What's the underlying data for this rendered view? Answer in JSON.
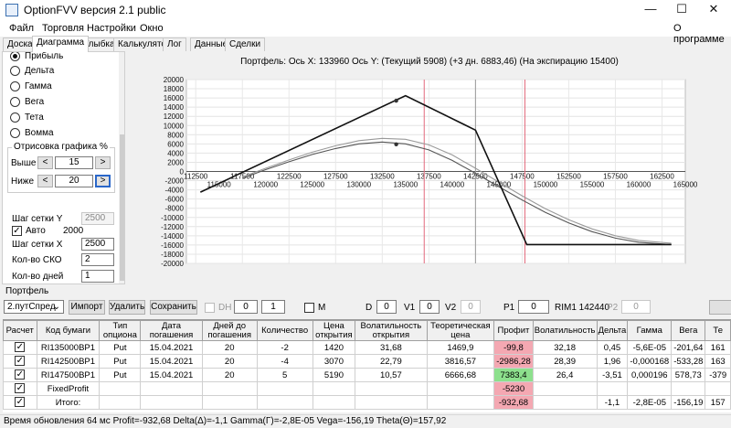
{
  "window": {
    "title": "OptionFVV версия 2.1 public",
    "minimize": "—",
    "maximize": "☐",
    "close": "✕"
  },
  "menu": {
    "items": [
      "Файл",
      "Торговля",
      "Настройки",
      "Окно"
    ],
    "right": "О программе"
  },
  "tabs": [
    "Доска",
    "Диаграмма",
    "Улыбка",
    "Калькулятор",
    "Лог",
    "Данные",
    "Сделки"
  ],
  "left_panel": {
    "radios": [
      {
        "label": "Прибыль",
        "checked": true
      },
      {
        "label": "Дельта",
        "checked": false
      },
      {
        "label": "Гамма",
        "checked": false
      },
      {
        "label": "Вега",
        "checked": false
      },
      {
        "label": "Тета",
        "checked": false
      },
      {
        "label": "Вомма",
        "checked": false
      }
    ],
    "group_title": "Отрисовка графика %",
    "above_label": "Выше",
    "above_value": "15",
    "below_label": "Ниже",
    "below_value": "20",
    "spin_left": "<",
    "spin_right": ">",
    "grid_y_label": "Шаг сетки Y",
    "grid_y_value": "2500",
    "auto_label": "Авто",
    "auto_checked": true,
    "auto_value": "2000",
    "grid_x_label": "Шаг сетки X",
    "grid_x_value": "2500",
    "sko_label": "Кол-во СКО",
    "sko_value": "2",
    "days_label": "Кол-во дней",
    "days_value": "1"
  },
  "chart": {
    "title": "Портфель: Ось X: 133960 Ось Y:  (Текущий 5908)  (+3 дн. 6883,46)  (На экспирацию 15400)"
  },
  "chart_data": {
    "type": "line",
    "title": "Портфель: Ось X: 133960 Ось Y:  (Текущий 5908)  (+3 дн. 6883,46)  (На экспирацию 15400)",
    "xlim": [
      111500,
      165000
    ],
    "ylim": [
      -20000,
      20000
    ],
    "grid": true,
    "y_ticks": [
      20000,
      18000,
      16000,
      14000,
      12000,
      10000,
      8000,
      6000,
      4000,
      2000,
      0,
      -2000,
      -4000,
      -6000,
      -8000,
      -10000,
      -12000,
      -14000,
      -16000,
      -18000,
      -20000
    ],
    "x_ticks_upper": [
      112500,
      117500,
      122500,
      127500,
      132500,
      137500,
      142500,
      147500,
      152500,
      157500,
      162500
    ],
    "x_ticks_lower": [
      115000,
      120000,
      125000,
      130000,
      135000,
      140000,
      145000,
      150000,
      155000,
      160000,
      165000
    ],
    "vlines": [
      {
        "x": 137000,
        "color": "#e36a7d"
      },
      {
        "x": 142500,
        "color": "#9a9a9a"
      },
      {
        "x": 147800,
        "color": "#e36a7d"
      }
    ],
    "series": [
      {
        "color": "#111111",
        "width": 1.6,
        "x": [
          113000,
          135000,
          142500,
          148000,
          163500
        ],
        "y": [
          -4500,
          16500,
          9000,
          -15900,
          -15900
        ]
      },
      {
        "color": "#9a9a9a",
        "width": 1.1,
        "x": [
          117500,
          120000,
          122500,
          125000,
          127500,
          130000,
          132500,
          135000,
          137500,
          140000,
          142500,
          145000,
          147500,
          150000,
          152500,
          155000,
          157500,
          160000,
          163500
        ],
        "y": [
          -1200,
          700,
          2500,
          4200,
          5600,
          6700,
          7200,
          7000,
          5800,
          3600,
          700,
          -2300,
          -5300,
          -8100,
          -10500,
          -12500,
          -14000,
          -15000,
          -15600
        ]
      },
      {
        "color": "#555555",
        "width": 1.1,
        "x": [
          117500,
          120000,
          122500,
          125000,
          127500,
          130000,
          132500,
          135000,
          137500,
          140000,
          142500,
          145000,
          147500,
          150000,
          152500,
          155000,
          157500,
          160000,
          163500
        ],
        "y": [
          -1500,
          400,
          2100,
          3700,
          5000,
          6000,
          6400,
          6000,
          4700,
          2400,
          -400,
          -3300,
          -6200,
          -8900,
          -11200,
          -13100,
          -14500,
          -15400,
          -15900
        ]
      }
    ],
    "points": [
      {
        "x": 134000,
        "y": 15400
      },
      {
        "x": 134000,
        "y": 5908
      }
    ]
  },
  "portfolio": {
    "label": "Портфель",
    "select_value": "2.путСпред",
    "import_label": "Импорт",
    "delete_label": "Удалить",
    "save_label": "Сохранить",
    "dh_label": "DH",
    "dh_val1": "0",
    "dh_val2": "1",
    "m_label": "M",
    "d_label": "D",
    "d_value": "0",
    "v1_label": "V1",
    "v1_value": "0",
    "v2_label": "V2",
    "v2_value": "0",
    "p1_label": "P1",
    "p1_value": "0",
    "rim_text": "RIM1 142440",
    "p2_label": "P2",
    "p2_value": "0"
  },
  "grid": {
    "headers": [
      "Расчет",
      "Код бумаги",
      "Тип опциона",
      "Дата погашения",
      "Дней до погашения",
      "Количество",
      "Цена открытия",
      "Волатильность открытия",
      "Теоретическая цена",
      "Профит",
      "Волатильность",
      "Дельта",
      "Гамма",
      "Вега",
      "Те"
    ],
    "rows": [
      {
        "cells": [
          "",
          "RI135000BP1",
          "Put",
          "15.04.2021",
          "20",
          "-2",
          "1420",
          "31,68",
          "1469,9",
          "-99,8",
          "32,18",
          "0,45",
          "-5,6E-05",
          "-201,64",
          "161"
        ],
        "profit_class": "neg"
      },
      {
        "cells": [
          "",
          "RI142500BP1",
          "Put",
          "15.04.2021",
          "20",
          "-4",
          "3070",
          "22,79",
          "3816,57",
          "-2986,28",
          "28,39",
          "1,96",
          "-0,000168",
          "-533,28",
          "163"
        ],
        "profit_class": "neg"
      },
      {
        "cells": [
          "",
          "RI147500BP1",
          "Put",
          "15.04.2021",
          "20",
          "5",
          "5190",
          "10,57",
          "6666,68",
          "7383,4",
          "26,4",
          "-3,51",
          "0,000196",
          "578,73",
          "-379"
        ],
        "profit_class": "pos"
      },
      {
        "cells": [
          "",
          "FixedProfit",
          "",
          "",
          "",
          "",
          "",
          "",
          "",
          "-5230",
          "",
          "",
          "",
          "",
          ""
        ],
        "profit_class": "neg"
      },
      {
        "cells": [
          "",
          "Итого:",
          "",
          "",
          "",
          "",
          "",
          "",
          "",
          "-932,68",
          "",
          "-1,1",
          "-2,8E-05",
          "-156,19",
          "157"
        ],
        "profit_class": "neg"
      }
    ]
  },
  "status": "Время обновления 64 мс  Profit=-932,68 Delta(Δ)=-1,1 Gamma(Γ)=-2,8E-05 Vega=-156,19 Theta(Θ)=157,92"
}
